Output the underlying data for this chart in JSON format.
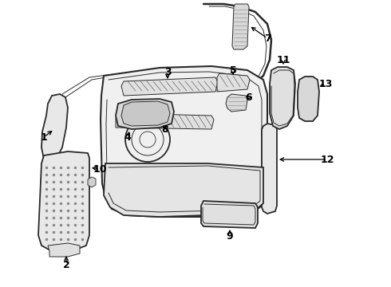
{
  "bg_color": "#ffffff",
  "line_color": "#2a2a2a",
  "label_color": "#000000",
  "lw_main": 1.3,
  "lw_thin": 0.7,
  "figsize": [
    4.9,
    3.6
  ],
  "dpi": 100
}
